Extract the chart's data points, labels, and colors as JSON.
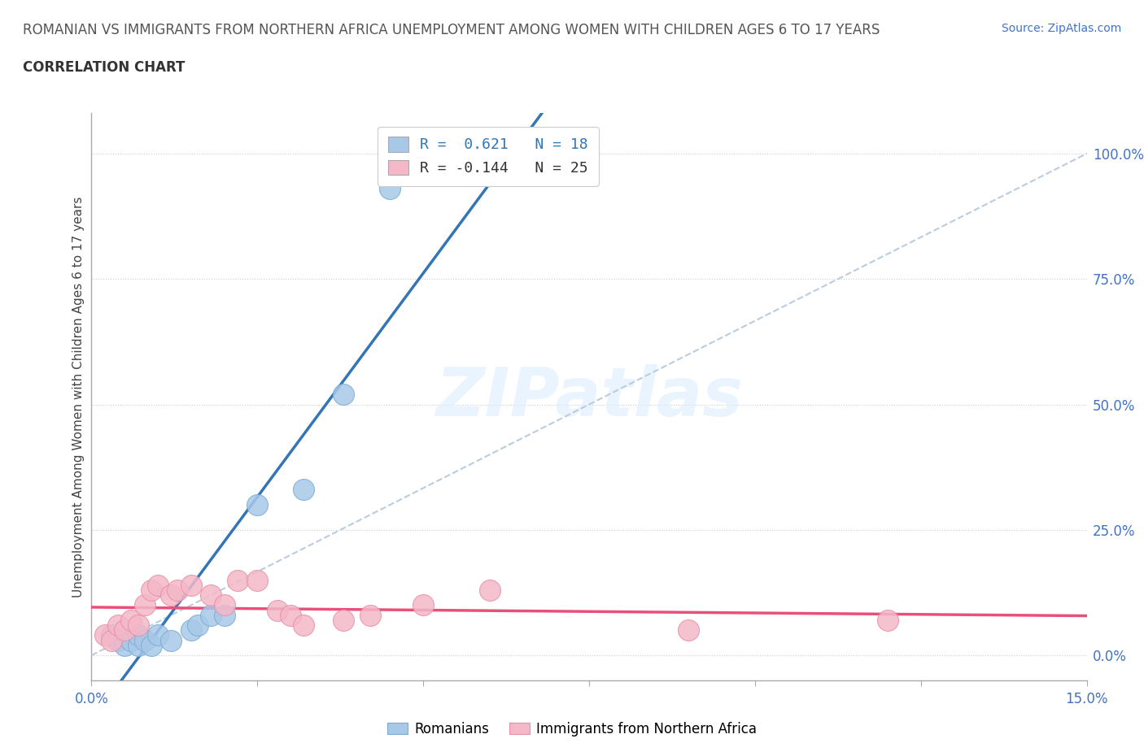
{
  "title_line1": "ROMANIAN VS IMMIGRANTS FROM NORTHERN AFRICA UNEMPLOYMENT AMONG WOMEN WITH CHILDREN AGES 6 TO 17 YEARS",
  "title_line2": "CORRELATION CHART",
  "source": "Source: ZipAtlas.com",
  "ylabel": "Unemployment Among Women with Children Ages 6 to 17 years",
  "xlim": [
    0.0,
    0.15
  ],
  "ylim": [
    -0.05,
    1.08
  ],
  "ytick_positions": [
    0.0,
    0.25,
    0.5,
    0.75,
    1.0
  ],
  "ytick_labels": [
    "0.0%",
    "25.0%",
    "50.0%",
    "75.0%",
    "100.0%"
  ],
  "watermark": "ZIPatlas",
  "blue_color": "#a8c8e8",
  "blue_edge_color": "#7aadd4",
  "pink_color": "#f4b8c8",
  "pink_edge_color": "#e890a8",
  "blue_line_color": "#3375b5",
  "pink_line_color": "#e8507a",
  "ref_line_color": "#bbccdd",
  "romanians_x": [
    0.003,
    0.004,
    0.005,
    0.006,
    0.007,
    0.007,
    0.008,
    0.009,
    0.01,
    0.012,
    0.015,
    0.016,
    0.018,
    0.02,
    0.025,
    0.032,
    0.038,
    0.045
  ],
  "romanians_y": [
    0.04,
    0.03,
    0.02,
    0.03,
    0.02,
    0.04,
    0.03,
    0.02,
    0.04,
    0.03,
    0.05,
    0.06,
    0.08,
    0.08,
    0.3,
    0.33,
    0.52,
    0.93
  ],
  "northern_africa_x": [
    0.002,
    0.003,
    0.004,
    0.005,
    0.006,
    0.007,
    0.008,
    0.009,
    0.01,
    0.012,
    0.013,
    0.015,
    0.018,
    0.02,
    0.022,
    0.025,
    0.028,
    0.03,
    0.032,
    0.038,
    0.042,
    0.05,
    0.06,
    0.09,
    0.12
  ],
  "northern_africa_y": [
    0.04,
    0.03,
    0.06,
    0.05,
    0.07,
    0.06,
    0.1,
    0.13,
    0.14,
    0.12,
    0.13,
    0.14,
    0.12,
    0.1,
    0.15,
    0.15,
    0.09,
    0.08,
    0.06,
    0.07,
    0.08,
    0.1,
    0.13,
    0.05,
    0.07
  ],
  "background_color": "#ffffff",
  "grid_color": "#cccccc",
  "axis_color": "#aaaaaa",
  "tick_color": "#4472c4",
  "legend_r1_blue": "0.621",
  "legend_n1": "18",
  "legend_r2_pink": "-0.144",
  "legend_n2": "25",
  "legend_label1": "Romanians",
  "legend_label2": "Immigrants from Northern Africa"
}
